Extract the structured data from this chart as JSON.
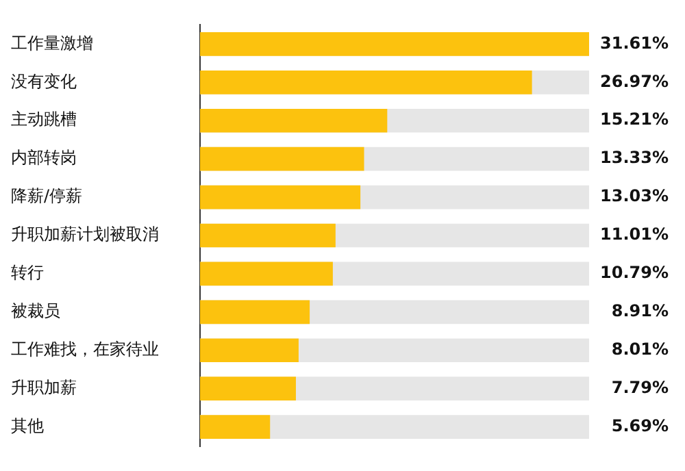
{
  "chart_data": {
    "type": "bar",
    "orientation": "horizontal",
    "categories": [
      "工作量激增",
      "没有变化",
      "主动跳槽",
      "内部转岗",
      "降薪/停薪",
      "升职加薪计划被取消",
      "转行",
      "被裁员",
      "工作难找，在家待业",
      "升职加薪",
      "其他"
    ],
    "values": [
      31.61,
      26.97,
      15.21,
      13.33,
      13.03,
      11.01,
      10.79,
      8.91,
      8.01,
      7.79,
      5.69
    ],
    "color": "#fcc20e",
    "value_labels": [
      "31.61%",
      "26.97%",
      "15.21%",
      "13.33%",
      "13.03%",
      "11.01%",
      "10.79%",
      "8.91%",
      "8.01%",
      "7.79%",
      "5.69%"
    ],
    "grid": false,
    "legend": false
  }
}
